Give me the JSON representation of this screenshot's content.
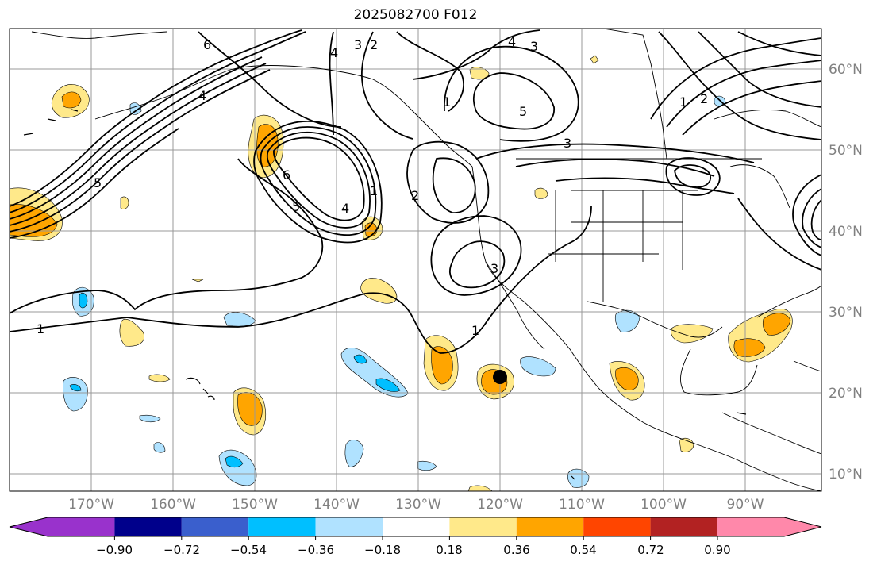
{
  "title": "2025082700 F012",
  "map": {
    "lat_labels": [
      "60°N",
      "50°N",
      "40°N",
      "30°N",
      "20°N",
      "10°N"
    ],
    "lon_labels": [
      "170°W",
      "160°W",
      "150°W",
      "140°W",
      "130°W",
      "120°W",
      "110°W",
      "100°W",
      "90°W"
    ],
    "contour_labels": [
      "1",
      "1",
      "1",
      "1",
      "1",
      "2",
      "2",
      "2",
      "3",
      "3",
      "3",
      "3",
      "4",
      "4",
      "4",
      "4",
      "5",
      "5",
      "5",
      "6",
      "6"
    ],
    "marker": "black-dot",
    "colors": {
      "coastline": "#000000",
      "gridline": "#999999",
      "contour": "#000000"
    }
  },
  "colorbar": {
    "ticks": [
      "−0.90",
      "−0.72",
      "−0.54",
      "−0.36",
      "−0.18",
      "0.18",
      "0.36",
      "0.54",
      "0.72",
      "0.90"
    ],
    "colors": [
      "#9932cc",
      "#00008b",
      "#3a5fcd",
      "#00bfff",
      "#b0e2ff",
      "#ffffff",
      "#ffe98a",
      "#ffa500",
      "#ff4500",
      "#b22222",
      "#ff88aa"
    ]
  }
}
